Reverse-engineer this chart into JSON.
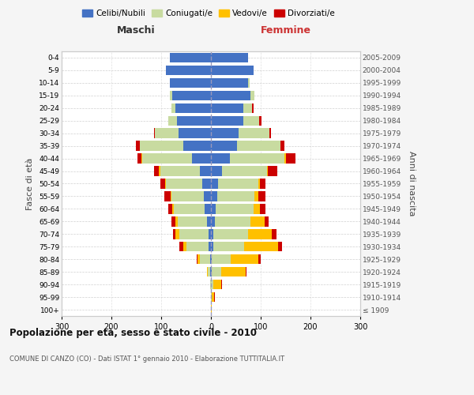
{
  "age_groups": [
    "100+",
    "95-99",
    "90-94",
    "85-89",
    "80-84",
    "75-79",
    "70-74",
    "65-69",
    "60-64",
    "55-59",
    "50-54",
    "45-49",
    "40-44",
    "35-39",
    "30-34",
    "25-29",
    "20-24",
    "15-19",
    "10-14",
    "5-9",
    "0-4"
  ],
  "birth_years": [
    "≤ 1909",
    "1910-1914",
    "1915-1919",
    "1920-1924",
    "1925-1929",
    "1930-1934",
    "1935-1939",
    "1940-1944",
    "1945-1949",
    "1950-1954",
    "1955-1959",
    "1960-1964",
    "1965-1969",
    "1970-1974",
    "1975-1979",
    "1980-1984",
    "1985-1989",
    "1990-1994",
    "1995-1999",
    "2000-2004",
    "2005-2009"
  ],
  "colors": {
    "celibi": "#4472C4",
    "coniugati": "#c8dba0",
    "vedovi": "#ffc000",
    "divorziati": "#cc0000"
  },
  "maschi": {
    "celibi": [
      0,
      0,
      0,
      1,
      2,
      5,
      5,
      8,
      12,
      14,
      18,
      22,
      38,
      55,
      65,
      68,
      72,
      78,
      82,
      90,
      82
    ],
    "coniugati": [
      0,
      0,
      2,
      5,
      20,
      45,
      58,
      58,
      62,
      65,
      72,
      80,
      100,
      88,
      48,
      18,
      8,
      4,
      1,
      0,
      0
    ],
    "vedovi": [
      0,
      0,
      0,
      2,
      5,
      6,
      8,
      5,
      3,
      2,
      2,
      2,
      1,
      0,
      0,
      0,
      0,
      0,
      0,
      0,
      0
    ],
    "divorziati": [
      0,
      0,
      0,
      0,
      2,
      8,
      5,
      8,
      8,
      12,
      10,
      10,
      8,
      8,
      2,
      0,
      0,
      0,
      0,
      0,
      0
    ]
  },
  "femmine": {
    "celibi": [
      0,
      0,
      0,
      2,
      2,
      5,
      5,
      8,
      10,
      12,
      15,
      22,
      38,
      52,
      55,
      65,
      65,
      80,
      75,
      85,
      75
    ],
    "coniugati": [
      0,
      1,
      5,
      18,
      38,
      62,
      70,
      72,
      75,
      75,
      80,
      90,
      110,
      88,
      62,
      32,
      18,
      8,
      3,
      0,
      0
    ],
    "vedovi": [
      2,
      5,
      15,
      50,
      55,
      68,
      48,
      28,
      14,
      8,
      4,
      2,
      2,
      0,
      0,
      0,
      0,
      0,
      0,
      0,
      0
    ],
    "divorziati": [
      0,
      2,
      2,
      2,
      5,
      8,
      8,
      8,
      10,
      15,
      10,
      20,
      20,
      8,
      4,
      5,
      2,
      0,
      0,
      0,
      0
    ]
  },
  "xlim": 300,
  "title": "Popolazione per età, sesso e stato civile - 2010",
  "subtitle": "COMUNE DI CANZO (CO) - Dati ISTAT 1° gennaio 2010 - Elaborazione TUTTITALIA.IT",
  "ylabel_left": "Fasce di età",
  "ylabel_right": "Anni di nascita",
  "xlabel_left": "Maschi",
  "xlabel_right": "Femmine",
  "legend_labels": [
    "Celibi/Nubili",
    "Coniugati/e",
    "Vedovi/e",
    "Divorziati/e"
  ],
  "bg_color": "#f5f5f5",
  "plot_bg": "#ffffff"
}
